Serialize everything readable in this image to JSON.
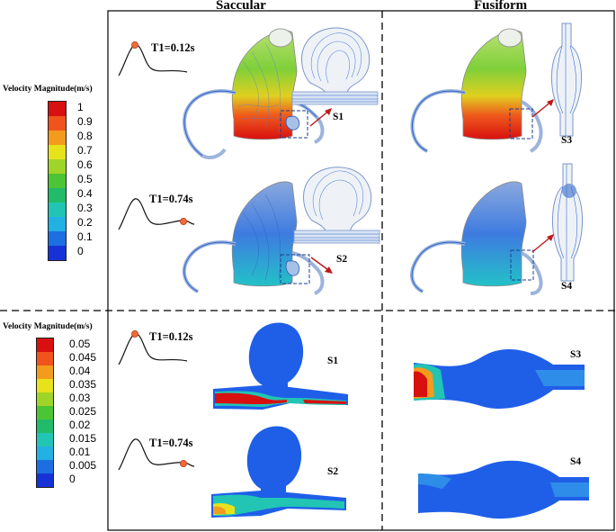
{
  "header": {
    "col1": "Saccular",
    "col2": "Fusiform"
  },
  "top_legend": {
    "title": "Velocity Magnitude(m/s)",
    "labels": [
      "1",
      "0.9",
      "0.8",
      "0.7",
      "0.6",
      "0.5",
      "0.4",
      "0.3",
      "0.2",
      "0.1",
      "0"
    ],
    "colors": [
      "#d81010",
      "#f0541c",
      "#f39b1d",
      "#e6e21c",
      "#9fd528",
      "#4cc534",
      "#22bb6a",
      "#22c5b4",
      "#23b0e3",
      "#1c6fe0",
      "#1632d6"
    ]
  },
  "bottom_legend": {
    "title": "Velocity Magnitude(m/s)",
    "labels": [
      "0.05",
      "0.045",
      "0.04",
      "0.035",
      "0.03",
      "0.025",
      "0.02",
      "0.015",
      "0.01",
      "0.005",
      "0"
    ],
    "colors": [
      "#d81010",
      "#f0541c",
      "#f39b1d",
      "#e6e21c",
      "#9fd528",
      "#4cc534",
      "#22bb6a",
      "#22c5b4",
      "#23b0e3",
      "#1c6fe0",
      "#1632d6"
    ]
  },
  "time_labels": {
    "t1": "T1=0.12s",
    "t2": "T1=0.74s"
  },
  "case_labels": {
    "s1": "S1",
    "s2": "S2",
    "s3": "S3",
    "s4": "S4"
  }
}
